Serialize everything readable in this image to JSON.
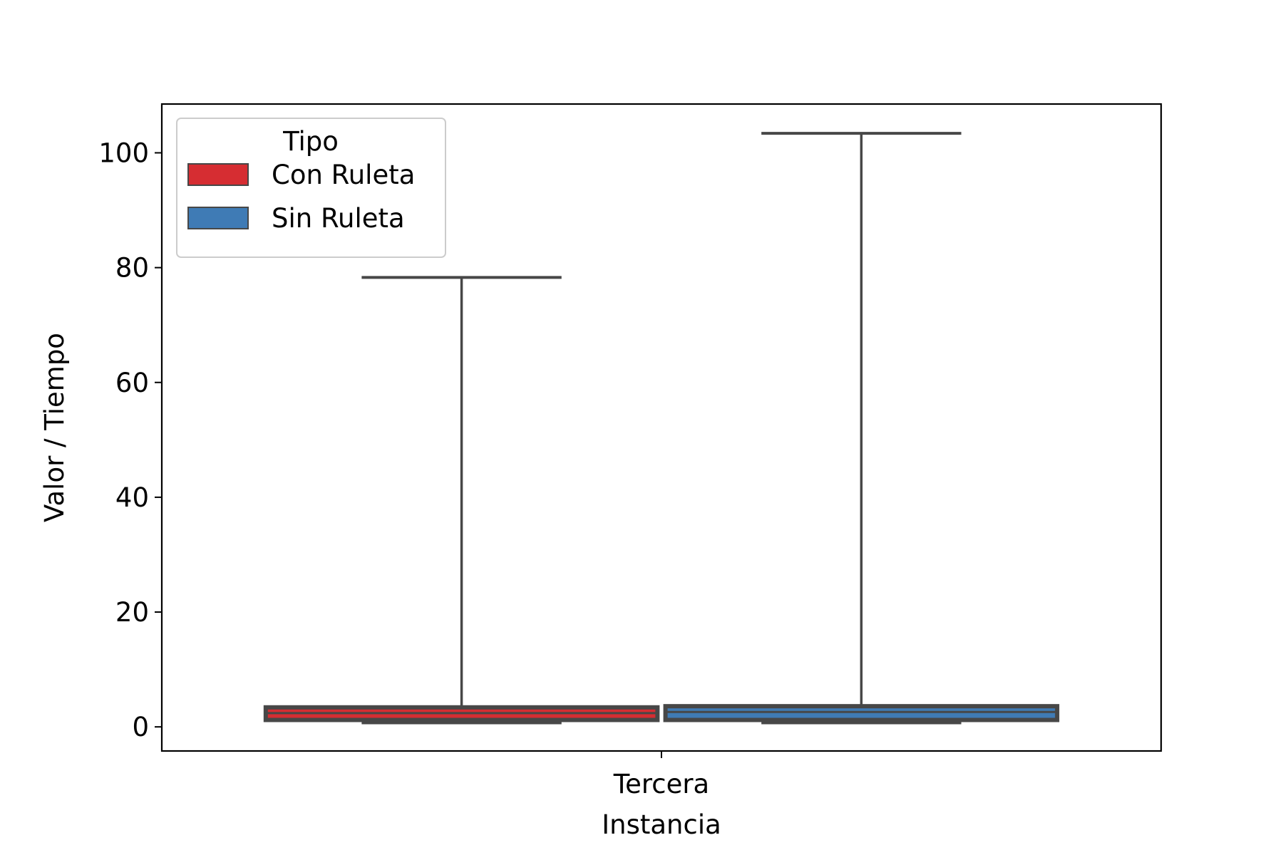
{
  "chart_data": {
    "type": "box",
    "title": "",
    "xlabel": "Instancia",
    "ylabel": "Valor / Tiempo",
    "categories": [
      "Tercera"
    ],
    "ylim": [
      -4.2,
      108.5
    ],
    "yticks": [
      0,
      20,
      40,
      60,
      80,
      100
    ],
    "grid": false,
    "legend": {
      "title": "Tipo",
      "position": "top-left"
    },
    "series": [
      {
        "name": "Con Ruleta",
        "color": "#d62d32",
        "boxes": [
          {
            "category": "Tercera",
            "whisker_low": 0.7,
            "q1": 1.2,
            "median": 2.4,
            "q3": 3.4,
            "whisker_high": 78.3
          }
        ]
      },
      {
        "name": "Sin Ruleta",
        "color": "#3f7bb5",
        "boxes": [
          {
            "category": "Tercera",
            "whisker_low": 0.7,
            "q1": 1.2,
            "median": 2.6,
            "q3": 3.6,
            "whisker_high": 103.4
          }
        ]
      }
    ],
    "edge_color": "#474747"
  }
}
